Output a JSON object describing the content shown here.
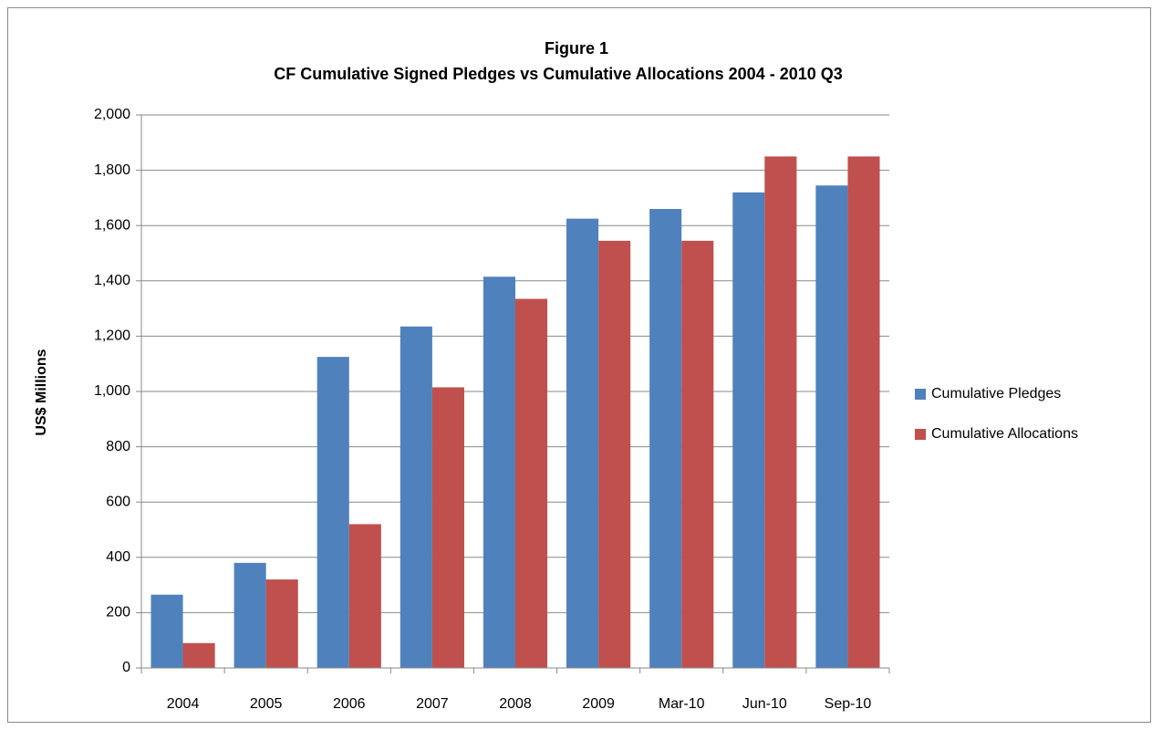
{
  "chart_data": {
    "type": "bar",
    "title": "Figure 1",
    "subtitle": "CF Cumulative Signed Pledges vs Cumulative Allocations 2004 - 2010 Q3",
    "y_label": "US$ Millions",
    "categories": [
      "2004",
      "2005",
      "2006",
      "2007",
      "2008",
      "2009",
      "Mar-10",
      "Jun-10",
      "Sep-10"
    ],
    "series": [
      {
        "name": "Cumulative Pledges",
        "color": "#4f81bd",
        "values": [
          265,
          380,
          1125,
          1235,
          1415,
          1625,
          1660,
          1720,
          1745
        ]
      },
      {
        "name": "Cumulative Allocations",
        "color": "#c0504d",
        "values": [
          90,
          320,
          520,
          1015,
          1335,
          1545,
          1545,
          1850,
          1850
        ]
      }
    ],
    "ylim": [
      0,
      2000
    ],
    "yticks": [
      0,
      200,
      400,
      600,
      800,
      {
        "value": 1000,
        "label": "1,000"
      },
      {
        "value": 1200,
        "label": "1,200"
      },
      {
        "value": 1400,
        "label": "1,400"
      },
      {
        "value": 1600,
        "label": "1,600"
      },
      {
        "value": 1800,
        "label": "1,800"
      },
      {
        "value": 2000,
        "label": "2,000"
      }
    ],
    "grid": true,
    "legend": "right"
  }
}
